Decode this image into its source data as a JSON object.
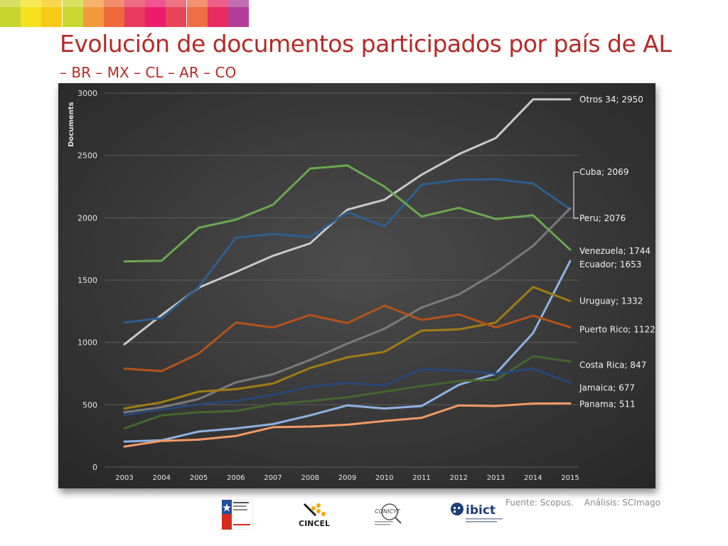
{
  "header": {
    "title": "Evolución de documentos participados por país de AL",
    "subtitle": "– BR – MX – CL – AR – CO"
  },
  "footer": {
    "source": "Fuente: Scopus.    Análisis: SCImago",
    "logos": [
      "CINCEL",
      "ibict",
      "CONICYT"
    ]
  },
  "chart_data": {
    "type": "line",
    "title": "",
    "xlabel": "",
    "ylabel": "Documents",
    "ylim": [
      0,
      3000
    ],
    "yticks": [
      0,
      500,
      1000,
      1500,
      2000,
      2500,
      3000
    ],
    "x": [
      2003,
      2004,
      2005,
      2006,
      2007,
      2008,
      2009,
      2010,
      2011,
      2012,
      2013,
      2014,
      2015
    ],
    "grid": true,
    "background": "#3a3a3a",
    "series": [
      {
        "name": "Otros 34",
        "label": "Otros 34; 2950",
        "color": "#c9c9c9",
        "values": [
          985,
          1220,
          1440,
          1565,
          1695,
          1795,
          2065,
          2145,
          2345,
          2510,
          2640,
          2950,
          2950
        ]
      },
      {
        "name": "Cuba",
        "label": "Cuba; 2069",
        "color": "#2e5f8e",
        "values": [
          1160,
          1195,
          1445,
          1840,
          1870,
          1845,
          2045,
          1930,
          2265,
          2305,
          2310,
          2275,
          2069
        ]
      },
      {
        "name": "Peru",
        "label": "Peru; 2076",
        "color": "#7b7b7b",
        "values": [
          440,
          480,
          545,
          680,
          745,
          860,
          990,
          1110,
          1280,
          1385,
          1560,
          1775,
          2076
        ]
      },
      {
        "name": "Venezuela",
        "label": "Venezuela; 1744",
        "color": "#6aa84f",
        "values": [
          1650,
          1655,
          1920,
          1985,
          2105,
          2395,
          2420,
          2250,
          2010,
          2080,
          1990,
          2020,
          1744
        ]
      },
      {
        "name": "Ecuador",
        "label": "Ecuador; 1653",
        "color": "#8db3e2",
        "values": [
          205,
          215,
          285,
          310,
          345,
          415,
          495,
          470,
          490,
          660,
          750,
          1075,
          1653
        ]
      },
      {
        "name": "Uruguay",
        "label": "Uruguay; 1332",
        "color": "#a07d12",
        "values": [
          470,
          520,
          605,
          625,
          670,
          795,
          880,
          925,
          1095,
          1105,
          1160,
          1445,
          1332
        ]
      },
      {
        "name": "Puerto Rico",
        "label": "Puerto Rico; 1122",
        "color": "#b5521c",
        "values": [
          790,
          770,
          910,
          1160,
          1120,
          1220,
          1155,
          1295,
          1180,
          1225,
          1120,
          1215,
          1122
        ]
      },
      {
        "name": "Costa Rica",
        "label": "Costa Rica; 847",
        "color": "#44672d",
        "values": [
          310,
          415,
          440,
          450,
          505,
          530,
          560,
          605,
          650,
          690,
          700,
          890,
          847
        ]
      },
      {
        "name": "Jamaica",
        "label": "Jamaica; 677",
        "color": "#264878",
        "values": [
          420,
          460,
          505,
          530,
          580,
          645,
          675,
          655,
          785,
          775,
          750,
          790,
          677
        ]
      },
      {
        "name": "Panama",
        "label": "Panama; 511",
        "color": "#f39a68",
        "values": [
          165,
          210,
          220,
          250,
          320,
          325,
          340,
          370,
          395,
          495,
          490,
          510,
          511
        ]
      }
    ]
  }
}
